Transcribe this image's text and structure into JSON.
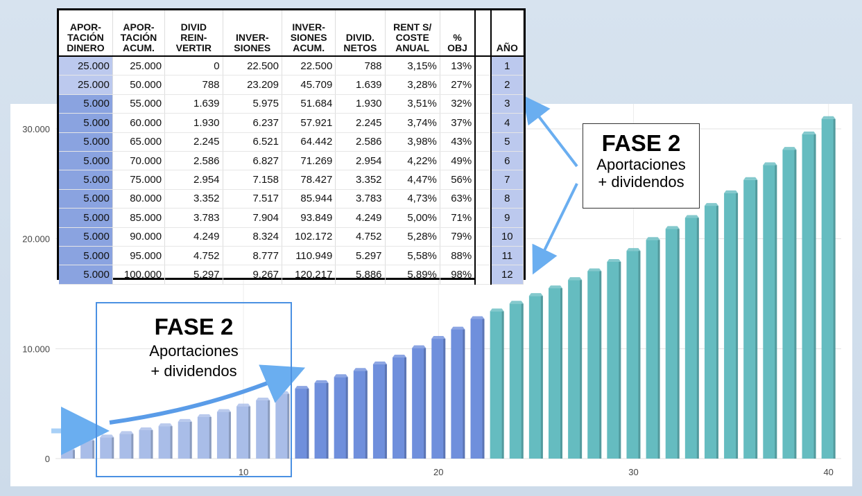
{
  "chart_data": {
    "type": "bar",
    "x": [
      1,
      2,
      3,
      4,
      5,
      6,
      7,
      8,
      9,
      10,
      11,
      12,
      13,
      14,
      15,
      16,
      17,
      18,
      19,
      20,
      21,
      22,
      23,
      24,
      25,
      26,
      27,
      28,
      29,
      30,
      31,
      32,
      33,
      34,
      35,
      36,
      37,
      38,
      39,
      40
    ],
    "values": [
      788,
      1639,
      1930,
      2245,
      2586,
      2954,
      3352,
      3783,
      4249,
      4752,
      5297,
      5886,
      6360,
      6880,
      7420,
      7990,
      8580,
      9200,
      10050,
      10900,
      11750,
      12700,
      13400,
      14100,
      14800,
      15500,
      16250,
      17050,
      17900,
      18900,
      19900,
      20900,
      21900,
      23000,
      24150,
      25350,
      26700,
      28100,
      29500,
      30900
    ],
    "ylim": [
      0,
      32000
    ],
    "y_ticks": [
      0,
      10000,
      20000,
      30000
    ],
    "y_tick_labels": [
      "0",
      "10.000",
      "20.000",
      "30.000"
    ],
    "x_ticks": [
      10,
      20,
      30,
      40
    ],
    "x_tick_labels": [
      "10",
      "20",
      "30",
      "40"
    ],
    "grid": true,
    "bar_colors": {
      "light": "#a9bde8",
      "medium": "#6f8fdc",
      "teal": "#65bcc0"
    }
  },
  "table": {
    "headers": [
      [
        "APOR-",
        "TACIÓN",
        "DINERO"
      ],
      [
        "APOR-",
        "TACIÓN",
        "ACUM."
      ],
      [
        "DIVID",
        "REIN-",
        "VERTIR"
      ],
      [
        "INVER-",
        "SIONES"
      ],
      [
        "INVER-",
        "SIONES",
        "ACUM."
      ],
      [
        "DIVID.",
        "NETOS"
      ],
      [
        "RENT S/",
        "COSTE",
        "ANUAL"
      ],
      [
        "%",
        "OBJ"
      ],
      [
        ""
      ],
      [
        "AÑO"
      ]
    ],
    "rows": [
      [
        "25.000",
        "25.000",
        "0",
        "22.500",
        "22.500",
        "788",
        "3,15%",
        "13%",
        "1"
      ],
      [
        "25.000",
        "50.000",
        "788",
        "23.209",
        "45.709",
        "1.639",
        "3,28%",
        "27%",
        "2"
      ],
      [
        "5.000",
        "55.000",
        "1.639",
        "5.975",
        "51.684",
        "1.930",
        "3,51%",
        "32%",
        "3"
      ],
      [
        "5.000",
        "60.000",
        "1.930",
        "6.237",
        "57.921",
        "2.245",
        "3,74%",
        "37%",
        "4"
      ],
      [
        "5.000",
        "65.000",
        "2.245",
        "6.521",
        "64.442",
        "2.586",
        "3,98%",
        "43%",
        "5"
      ],
      [
        "5.000",
        "70.000",
        "2.586",
        "6.827",
        "71.269",
        "2.954",
        "4,22%",
        "49%",
        "6"
      ],
      [
        "5.000",
        "75.000",
        "2.954",
        "7.158",
        "78.427",
        "3.352",
        "4,47%",
        "56%",
        "7"
      ],
      [
        "5.000",
        "80.000",
        "3.352",
        "7.517",
        "85.944",
        "3.783",
        "4,73%",
        "63%",
        "8"
      ],
      [
        "5.000",
        "85.000",
        "3.783",
        "7.904",
        "93.849",
        "4.249",
        "5,00%",
        "71%",
        "9"
      ],
      [
        "5.000",
        "90.000",
        "4.249",
        "8.324",
        "102.172",
        "4.752",
        "5,28%",
        "79%",
        "10"
      ],
      [
        "5.000",
        "95.000",
        "4.752",
        "8.777",
        "110.949",
        "5.297",
        "5,58%",
        "88%",
        "11"
      ],
      [
        "5.000",
        "100.000",
        "5.297",
        "9.267",
        "120.217",
        "5.886",
        "5,89%",
        "98%",
        "12"
      ]
    ]
  },
  "callout_right": {
    "title": "FASE 2",
    "line1": "Aportaciones",
    "line2": "+ dividendos"
  },
  "callout_left": {
    "title": "FASE 2",
    "line1": "Aportaciones",
    "line2": "+ dividendos"
  },
  "arrow_color": "#6aaef0"
}
